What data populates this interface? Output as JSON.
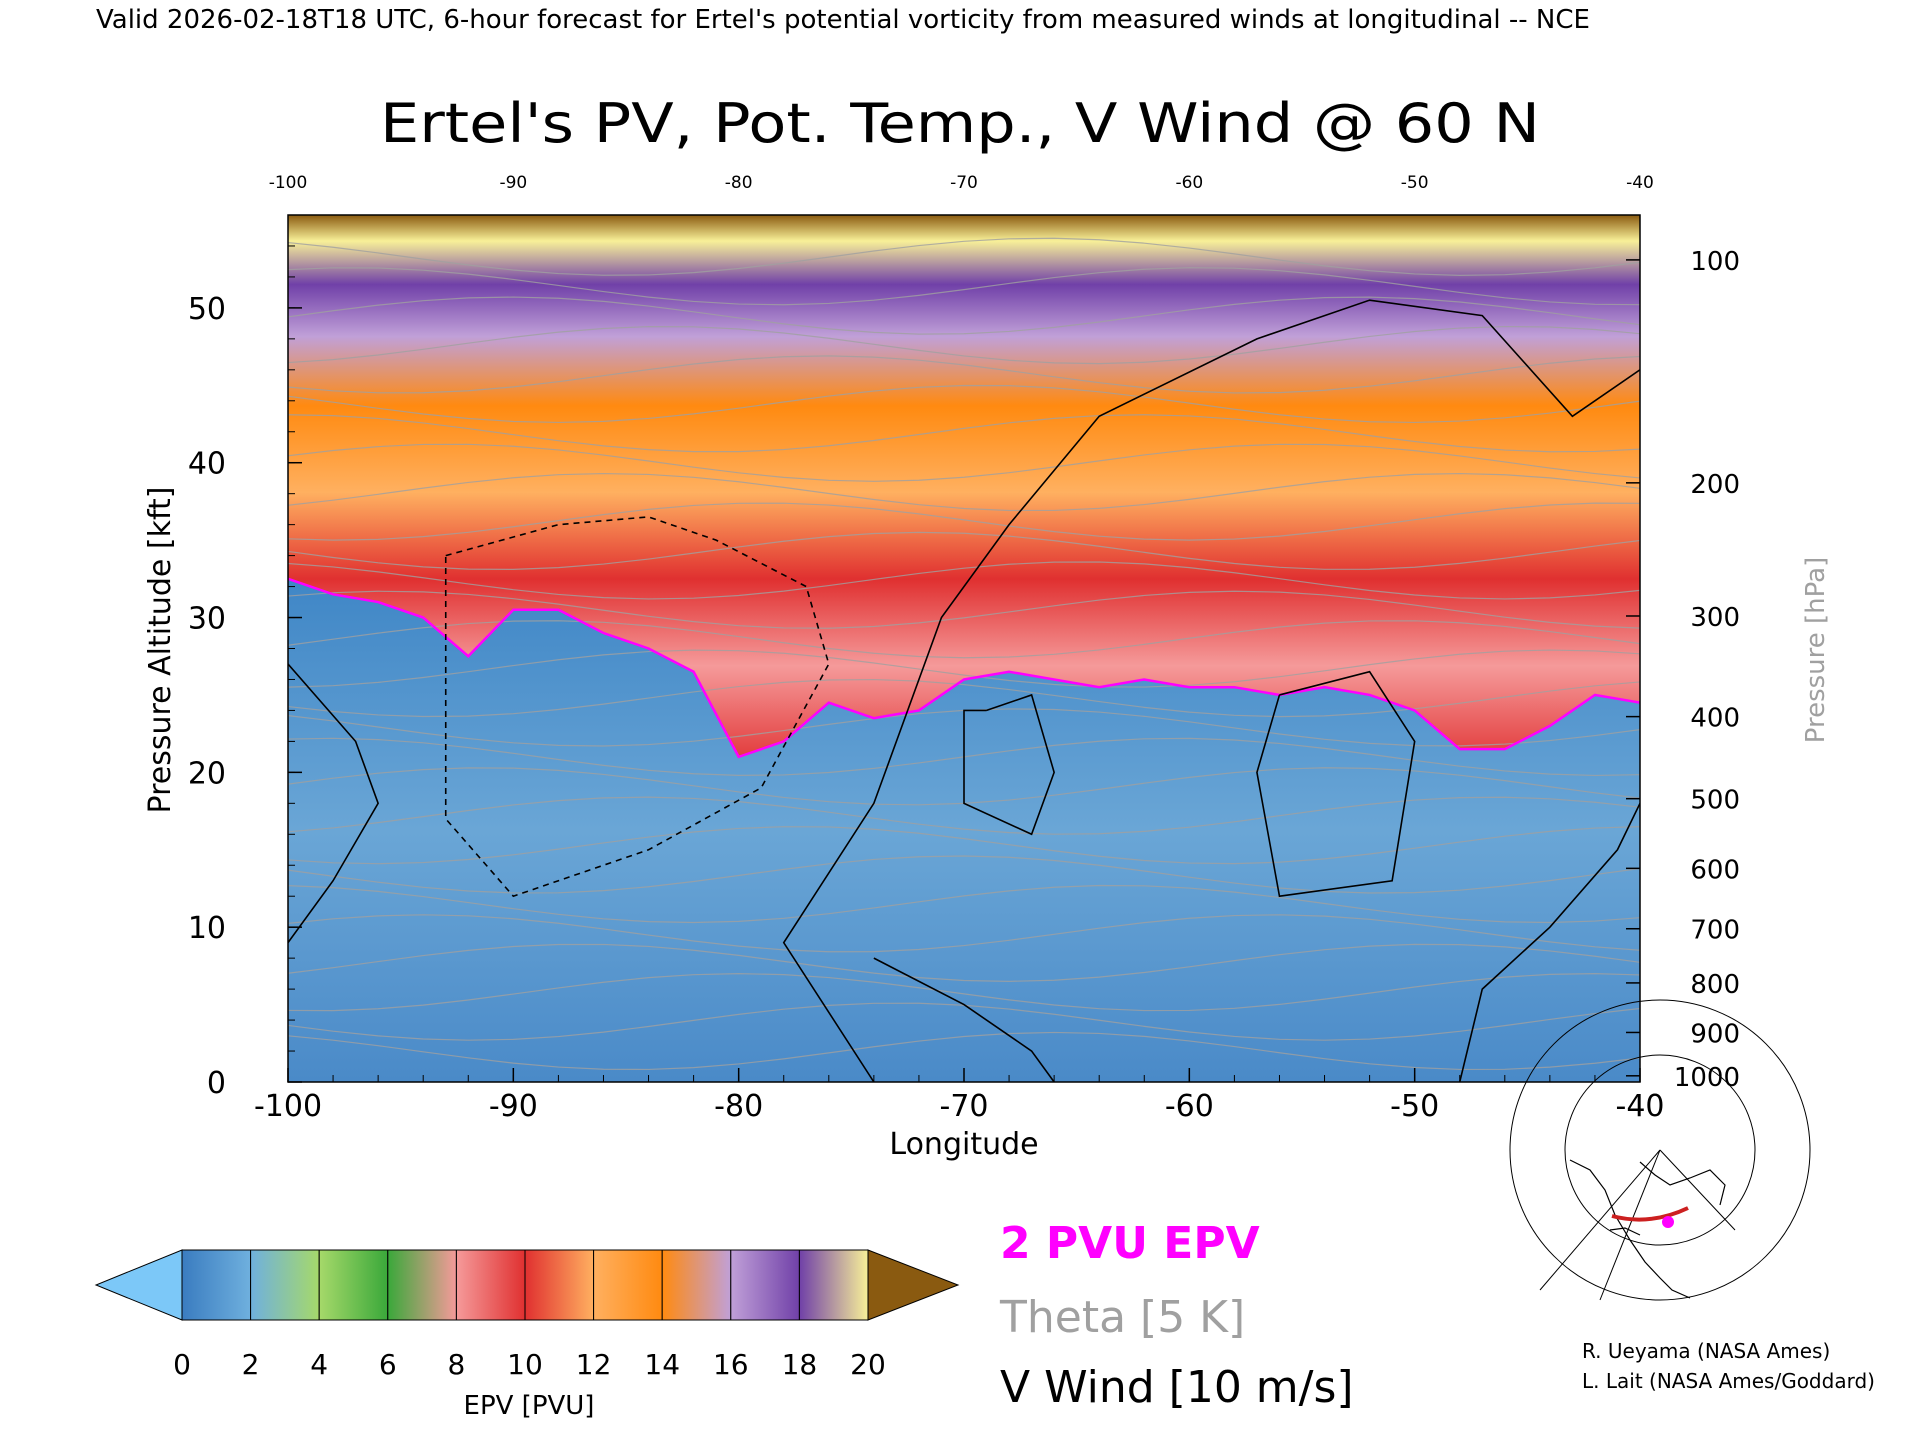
{
  "header": {
    "valid_line": "Valid 2026-02-18T18 UTC, 6-hour forecast for Ertel's potential vorticity from measured winds at longitudinal -- NCE"
  },
  "chart_data": {
    "type": "heatmap",
    "title": "Ertel's PV, Pot. Temp., V Wind @ 60 N",
    "xlabel": "Longitude",
    "ylabel": "Pressure Altitude [kft]",
    "ylabel_right": "Pressure [hPa]",
    "xlim": [
      -100,
      -40
    ],
    "ylim": [
      0,
      56
    ],
    "x_ticks": [
      "-100",
      "-90",
      "-80",
      "-70",
      "-60",
      "-50",
      "-40"
    ],
    "x_ticks_top": [
      "-100",
      "-90",
      "-80",
      "-70",
      "-60",
      "-50",
      "-40"
    ],
    "y_ticks": [
      {
        "value": 0,
        "label": "0"
      },
      {
        "value": 10,
        "label": "10"
      },
      {
        "value": 20,
        "label": "20"
      },
      {
        "value": 30,
        "label": "30"
      },
      {
        "value": 40,
        "label": "40"
      },
      {
        "value": 50,
        "label": "50"
      }
    ],
    "pressure_ticks": [
      {
        "hpa": 100,
        "kft": 53.1,
        "label": "100"
      },
      {
        "hpa": 200,
        "kft": 38.7,
        "label": "200"
      },
      {
        "hpa": 300,
        "kft": 30.1,
        "label": "300"
      },
      {
        "hpa": 400,
        "kft": 23.6,
        "label": "400"
      },
      {
        "hpa": 500,
        "kft": 18.3,
        "label": "500"
      },
      {
        "hpa": 600,
        "kft": 13.8,
        "label": "600"
      },
      {
        "hpa": 700,
        "kft": 9.9,
        "label": "700"
      },
      {
        "hpa": 800,
        "kft": 6.4,
        "label": "800"
      },
      {
        "hpa": 900,
        "kft": 3.2,
        "label": "900"
      },
      {
        "hpa": 1000,
        "kft": 0.4,
        "label": "1000"
      }
    ],
    "pv_field": {
      "description_units": "PVU",
      "tropopause_kft": [
        [
          -100,
          32.5
        ],
        [
          -98,
          31.5
        ],
        [
          -96,
          31.0
        ],
        [
          -94,
          30.0
        ],
        [
          -92,
          27.5
        ],
        [
          -90,
          30.5
        ],
        [
          -88,
          30.5
        ],
        [
          -86,
          29.0
        ],
        [
          -84,
          28.0
        ],
        [
          -82,
          26.5
        ],
        [
          -80,
          21.0
        ],
        [
          -78,
          22.0
        ],
        [
          -76,
          24.5
        ],
        [
          -74,
          23.5
        ],
        [
          -72,
          24.0
        ],
        [
          -70,
          26.0
        ],
        [
          -68,
          26.5
        ],
        [
          -66,
          26.0
        ],
        [
          -64,
          25.5
        ],
        [
          -62,
          26.0
        ],
        [
          -60,
          25.5
        ],
        [
          -58,
          25.5
        ],
        [
          -56,
          25.0
        ],
        [
          -54,
          25.5
        ],
        [
          -52,
          25.0
        ],
        [
          -50,
          24.0
        ],
        [
          -48,
          21.5
        ],
        [
          -46,
          21.5
        ],
        [
          -44,
          23.0
        ],
        [
          -42,
          25.0
        ],
        [
          -40,
          24.5
        ]
      ],
      "stratosphere_pv_top": 20
    },
    "theta_contours_K": [
      270,
      280,
      290,
      300,
      310,
      320,
      330,
      340,
      350,
      360,
      370,
      380,
      390,
      400,
      420
    ],
    "v_wind_contours_ms": [
      -10,
      0,
      10
    ],
    "colorbar": {
      "label": "EPV [PVU]",
      "ticks": [
        "0",
        "2",
        "4",
        "6",
        "8",
        "10",
        "12",
        "14",
        "16",
        "18",
        "20"
      ],
      "colors": [
        "#3a7cc0",
        "#6fb0de",
        "#a6d96a",
        "#3aa83a",
        "#f59a9a",
        "#e03030",
        "#ffb060",
        "#ff8a10",
        "#c0a0d8",
        "#7040a8",
        "#f8f098",
        "#8a5a10"
      ],
      "under_color": "#7cc8f8",
      "over_color": "#8a5a10"
    },
    "legend": [
      {
        "label": "2 PVU EPV",
        "color": "#ff00ff"
      },
      {
        "label": "Theta [5 K]",
        "color": "#a0a0a0"
      },
      {
        "label": "V Wind [10 m/s]",
        "color": "#000000"
      }
    ],
    "marker_color": "#ff00ff",
    "section_color": "#cc2020"
  },
  "credits": {
    "line1": "R. Ueyama (NASA Ames)",
    "line2": "L. Lait (NASA Ames/Goddard)"
  }
}
